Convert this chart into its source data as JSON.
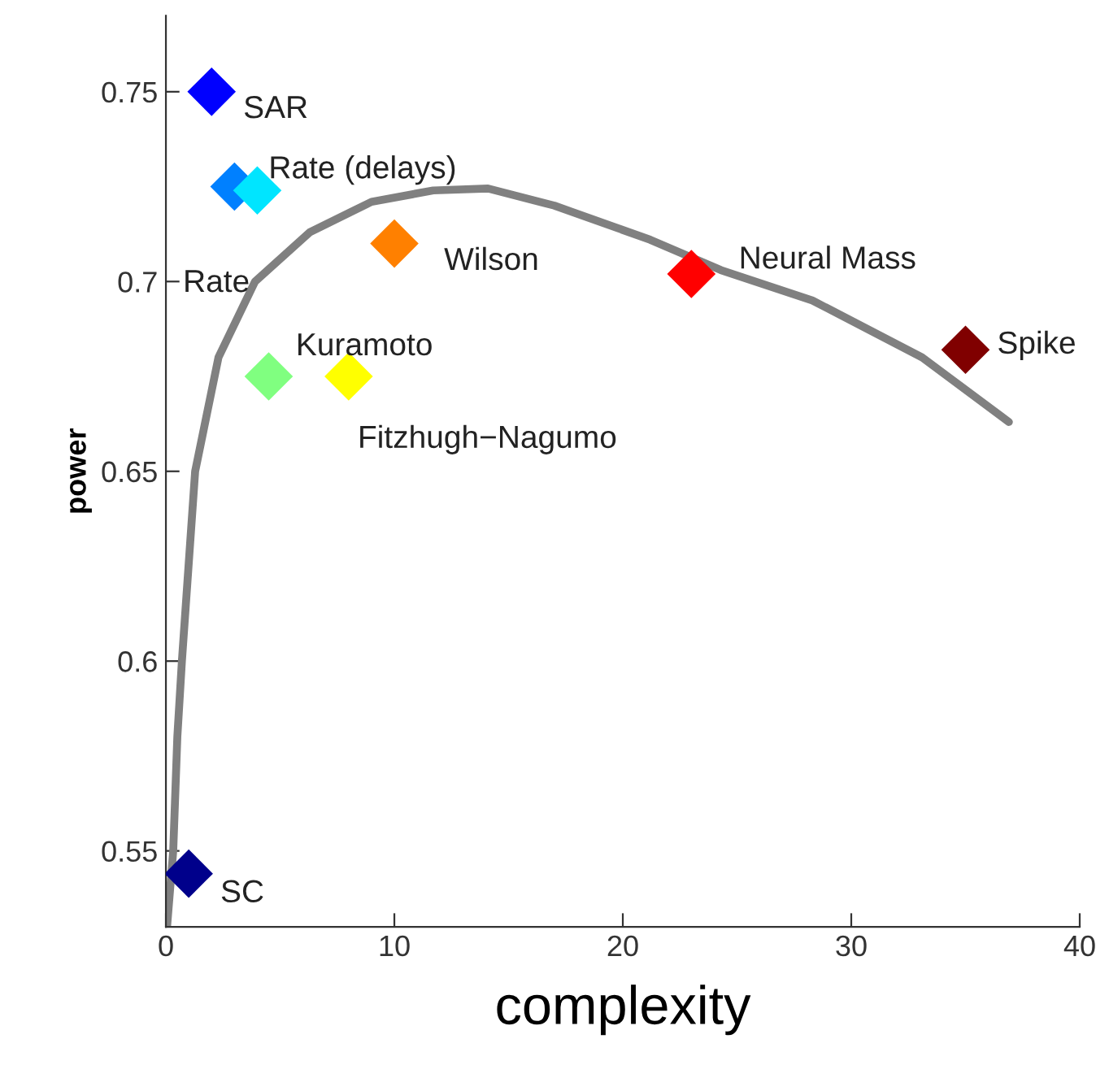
{
  "chart_data": {
    "type": "scatter",
    "xlabel": "complexity",
    "ylabel": "power",
    "marker": "diamond",
    "grid": false,
    "legend": false,
    "xlim": [
      0,
      40
    ],
    "xticks": [
      0,
      10,
      20,
      30,
      40
    ],
    "ylim": [
      0.53,
      0.77
    ],
    "yticks": [
      0.55,
      0.6,
      0.65,
      0.7,
      0.75
    ],
    "series": [
      {
        "type": "line",
        "color": "#808080",
        "marker": "none",
        "line_style": "solid",
        "x": [
          0.05,
          0.32,
          0.5,
          0.7,
          1.28,
          2.3,
          3.9,
          6.3,
          9,
          11.7,
          14.1,
          17,
          21.2,
          24.3,
          28.3,
          33.1,
          36.9
        ],
        "values": [
          0.53,
          0.55,
          0.58,
          0.6,
          0.65,
          0.68,
          0.7,
          0.713,
          0.721,
          0.724,
          0.7245,
          0.72,
          0.711,
          0.703,
          0.695,
          0.68,
          0.663
        ]
      },
      {
        "name": "SC",
        "color": "#00008b",
        "x": [
          1
        ],
        "values": [
          0.544
        ]
      },
      {
        "name": "SAR",
        "color": "#0000ff",
        "x": [
          2
        ],
        "values": [
          0.75
        ]
      },
      {
        "name": "Rate",
        "color": "#0080ff",
        "x": [
          3
        ],
        "values": [
          0.725
        ]
      },
      {
        "name": "Rate (delays)",
        "color": "#00e5ff",
        "x": [
          4
        ],
        "values": [
          0.724
        ]
      },
      {
        "name": "Kuramoto",
        "color": "#80ff80",
        "x": [
          4.5
        ],
        "values": [
          0.675
        ]
      },
      {
        "name": "Fitzhugh−Nagumo",
        "color": "#ffff00",
        "x": [
          8
        ],
        "values": [
          0.675
        ]
      },
      {
        "name": "Wilson",
        "color": "#ff8000",
        "x": [
          10
        ],
        "values": [
          0.71
        ]
      },
      {
        "name": "Neural Mass",
        "color": "#ff0000",
        "x": [
          23
        ],
        "values": [
          0.702
        ]
      },
      {
        "name": "Spike",
        "color": "#800000",
        "x": [
          35
        ],
        "values": [
          0.682
        ]
      }
    ]
  }
}
